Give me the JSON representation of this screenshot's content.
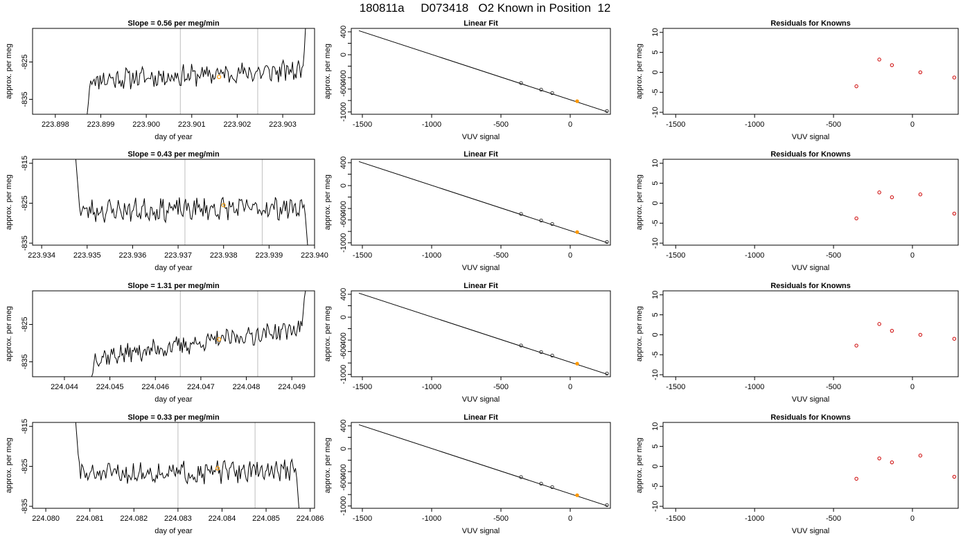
{
  "figure": {
    "title": "180811a     D073418   O2 Known in Position  12"
  },
  "colors": {
    "trace": "#000000",
    "marker_orange": "#ff9900",
    "residual_red": "#cc0000",
    "fit_line": "#000000",
    "vline": "#c8c8c8"
  },
  "chart_data": [
    {
      "type": "line",
      "row": 1,
      "col": 1,
      "title": "Slope =  0.56  per meg/min",
      "xlabel": "day of year",
      "ylabel": "approx. per meg",
      "xlim": [
        223.8975,
        223.9037
      ],
      "ylim": [
        -839,
        -816
      ],
      "xticks": [
        223.898,
        223.899,
        223.9,
        223.901,
        223.902,
        223.903
      ],
      "xtick_labels": [
        "223.898",
        "223.899",
        "223.900",
        "223.901",
        "223.902",
        "223.903"
      ],
      "yticks": [
        -835,
        -825
      ],
      "ytick_labels": [
        "-835",
        "-825"
      ],
      "vlines": [
        223.90075,
        223.90245
      ],
      "highlight": {
        "x": 223.9016,
        "y": -829
      },
      "trace": {
        "x_start": 223.8987,
        "x_end": 223.9035,
        "start_values": [
          -839,
          -836,
          -832,
          -830
        ],
        "end_values": [
          -826,
          -822,
          -816
        ],
        "mid": -828.5,
        "amplitude": 2.4,
        "trend": 2.5,
        "seed": 11
      }
    },
    {
      "type": "scatter",
      "row": 1,
      "col": 2,
      "title": "Linear Fit",
      "xlabel": "VUV signal",
      "ylabel": "approx. per meg",
      "xlim": [
        -1580,
        290
      ],
      "ylim": [
        -1040,
        460
      ],
      "xticks": [
        -1500,
        -1000,
        -500,
        0
      ],
      "xtick_labels": [
        "-1500",
        "-1000",
        "-500",
        "0"
      ],
      "yticks": [
        -1000,
        -800,
        -600,
        -400,
        -200,
        0,
        200,
        400
      ],
      "ytick_labels": [
        "-1000",
        "",
        "-600",
        "-400",
        "",
        "0",
        "",
        "400"
      ],
      "fit_line": {
        "x": [
          -1525,
          270
        ],
        "y": [
          420,
          -1000
        ]
      },
      "points": {
        "x": [
          -355,
          -210,
          -130,
          50,
          265
        ],
        "y": [
          -495,
          -610,
          -670,
          -812,
          -985
        ]
      },
      "orange_point_index": 3
    },
    {
      "type": "scatter",
      "row": 1,
      "col": 3,
      "title": "Residuals for Knowns",
      "xlabel": "VUV signal",
      "ylabel": "approx. per meg",
      "xlim": [
        -1580,
        290
      ],
      "ylim": [
        -10.5,
        11
      ],
      "xticks": [
        -1500,
        -1000,
        -500,
        0
      ],
      "xtick_labels": [
        "-1500",
        "-1000",
        "-500",
        "0"
      ],
      "yticks": [
        -10,
        -5,
        0,
        5,
        10
      ],
      "ytick_labels": [
        "-10",
        "-5",
        "0",
        "5",
        "10"
      ],
      "points": {
        "x": [
          -355,
          -210,
          -130,
          50,
          265
        ],
        "y": [
          -3.5,
          3.2,
          1.8,
          0,
          -1.3
        ]
      }
    },
    {
      "type": "line",
      "row": 2,
      "col": 1,
      "title": "Slope =  0.43  per meg/min",
      "xlabel": "day of year",
      "ylabel": "approx. per meg",
      "xlim": [
        223.9338,
        223.94
      ],
      "ylim": [
        -835.5,
        -814
      ],
      "xticks": [
        223.934,
        223.935,
        223.936,
        223.937,
        223.938,
        223.939,
        223.94
      ],
      "xtick_labels": [
        "223.934",
        "223.935",
        "223.936",
        "223.937",
        "223.938",
        "223.939",
        "223.940"
      ],
      "yticks": [
        -835,
        -825,
        -815
      ],
      "ytick_labels": [
        "-835",
        "-825",
        "-815"
      ],
      "vlines": [
        223.93715,
        223.93885
      ],
      "highlight": {
        "x": 223.938,
        "y": -825.5
      },
      "trace": {
        "x_start": 223.93475,
        "x_end": 223.93985,
        "start_values": [
          -814,
          -818,
          -822,
          -826
        ],
        "end_values": [
          -828,
          -832,
          -836
        ],
        "mid": -826.5,
        "amplitude": 2.4,
        "trend": 0.8,
        "seed": 23
      }
    },
    {
      "type": "scatter",
      "row": 2,
      "col": 2,
      "title": "Linear Fit",
      "xlabel": "VUV signal",
      "ylabel": "approx. per meg",
      "xlim": [
        -1580,
        290
      ],
      "ylim": [
        -1040,
        460
      ],
      "xticks": [
        -1500,
        -1000,
        -500,
        0
      ],
      "xtick_labels": [
        "-1500",
        "-1000",
        "-500",
        "0"
      ],
      "yticks": [
        -1000,
        -800,
        -600,
        -400,
        -200,
        0,
        200,
        400
      ],
      "ytick_labels": [
        "-1000",
        "",
        "-600",
        "-400",
        "",
        "0",
        "",
        "400"
      ],
      "fit_line": {
        "x": [
          -1525,
          270
        ],
        "y": [
          420,
          -1000
        ]
      },
      "points": {
        "x": [
          -355,
          -210,
          -130,
          50,
          265
        ],
        "y": [
          -495,
          -610,
          -670,
          -812,
          -985
        ]
      },
      "orange_point_index": 3
    },
    {
      "type": "scatter",
      "row": 2,
      "col": 3,
      "title": "Residuals for Knowns",
      "xlabel": "VUV signal",
      "ylabel": "approx. per meg",
      "xlim": [
        -1580,
        290
      ],
      "ylim": [
        -10.5,
        11
      ],
      "xticks": [
        -1500,
        -1000,
        -500,
        0
      ],
      "xtick_labels": [
        "-1500",
        "-1000",
        "-500",
        "0"
      ],
      "yticks": [
        -10,
        -5,
        0,
        5,
        10
      ],
      "ytick_labels": [
        "-10",
        "-5",
        "0",
        "5",
        "10"
      ],
      "points": {
        "x": [
          -355,
          -210,
          -130,
          50,
          265
        ],
        "y": [
          -3.8,
          2.7,
          1.5,
          2.2,
          -2.6
        ]
      }
    },
    {
      "type": "line",
      "row": 3,
      "col": 1,
      "title": "Slope =  1.31  per meg/min",
      "xlabel": "day of year",
      "ylabel": "approx. per meg",
      "xlim": [
        224.0433,
        224.0495
      ],
      "ylim": [
        -839,
        -816
      ],
      "xticks": [
        224.044,
        224.045,
        224.046,
        224.047,
        224.048,
        224.049
      ],
      "xtick_labels": [
        "224.044",
        "224.045",
        "224.046",
        "224.047",
        "224.048",
        "224.049"
      ],
      "yticks": [
        -835,
        -825
      ],
      "ytick_labels": [
        "-835",
        "-825"
      ],
      "vlines": [
        224.04655,
        224.04825
      ],
      "highlight": {
        "x": 224.0474,
        "y": -829
      },
      "trace": {
        "x_start": 224.0446,
        "x_end": 224.0493,
        "start_values": [
          -839,
          -838
        ],
        "end_values": [
          -822,
          -818,
          -816
        ],
        "mid": -830,
        "amplitude": 2.2,
        "trend": 8,
        "seed": 37
      }
    },
    {
      "type": "scatter",
      "row": 3,
      "col": 2,
      "title": "Linear Fit",
      "xlabel": "VUV signal",
      "ylabel": "approx. per meg",
      "xlim": [
        -1580,
        290
      ],
      "ylim": [
        -1040,
        460
      ],
      "xticks": [
        -1500,
        -1000,
        -500,
        0
      ],
      "xtick_labels": [
        "-1500",
        "-1000",
        "-500",
        "0"
      ],
      "yticks": [
        -1000,
        -800,
        -600,
        -400,
        -200,
        0,
        200,
        400
      ],
      "ytick_labels": [
        "-1000",
        "",
        "-600",
        "-400",
        "",
        "0",
        "",
        "400"
      ],
      "fit_line": {
        "x": [
          -1525,
          270
        ],
        "y": [
          420,
          -1000
        ]
      },
      "points": {
        "x": [
          -355,
          -210,
          -130,
          50,
          265
        ],
        "y": [
          -495,
          -610,
          -670,
          -812,
          -985
        ]
      },
      "orange_point_index": 3
    },
    {
      "type": "scatter",
      "row": 3,
      "col": 3,
      "title": "Residuals for Knowns",
      "xlabel": "VUV signal",
      "ylabel": "approx. per meg",
      "xlim": [
        -1580,
        290
      ],
      "ylim": [
        -10.5,
        11
      ],
      "xticks": [
        -1500,
        -1000,
        -500,
        0
      ],
      "xtick_labels": [
        "-1500",
        "-1000",
        "-500",
        "0"
      ],
      "yticks": [
        -10,
        -5,
        0,
        5,
        10
      ],
      "ytick_labels": [
        "-10",
        "-5",
        "0",
        "5",
        "10"
      ],
      "points": {
        "x": [
          -355,
          -210,
          -130,
          50,
          265
        ],
        "y": [
          -2.7,
          2.7,
          1.0,
          0,
          -1.0
        ]
      }
    },
    {
      "type": "line",
      "row": 4,
      "col": 1,
      "title": "Slope =  0.33  per meg/min",
      "xlabel": "day of year",
      "ylabel": "approx. per meg",
      "xlim": [
        224.0797,
        224.0861
      ],
      "ylim": [
        -835.5,
        -814
      ],
      "xticks": [
        224.08,
        224.081,
        224.082,
        224.083,
        224.084,
        224.085,
        224.086
      ],
      "xtick_labels": [
        "224.080",
        "224.081",
        "224.082",
        "224.083",
        "224.084",
        "224.085",
        "224.086"
      ],
      "yticks": [
        -835,
        -825,
        -815
      ],
      "ytick_labels": [
        "-835",
        "-825",
        "-815"
      ],
      "vlines": [
        224.083,
        224.08475
      ],
      "highlight": {
        "x": 224.0839,
        "y": -825.5
      },
      "trace": {
        "x_start": 224.08068,
        "x_end": 224.08575,
        "start_values": [
          -814,
          -818,
          -822,
          -824
        ],
        "end_values": [
          -828,
          -832,
          -836
        ],
        "mid": -826.5,
        "amplitude": 2.3,
        "trend": 1.0,
        "seed": 51
      }
    },
    {
      "type": "scatter",
      "row": 4,
      "col": 2,
      "title": "Linear Fit",
      "xlabel": "VUV signal",
      "ylabel": "approx. per meg",
      "xlim": [
        -1580,
        290
      ],
      "ylim": [
        -1040,
        460
      ],
      "xticks": [
        -1500,
        -1000,
        -500,
        0
      ],
      "xtick_labels": [
        "-1500",
        "-1000",
        "-500",
        "0"
      ],
      "yticks": [
        -1000,
        -800,
        -600,
        -400,
        -200,
        0,
        200,
        400
      ],
      "ytick_labels": [
        "-1000",
        "",
        "-600",
        "-400",
        "",
        "0",
        "",
        "400"
      ],
      "fit_line": {
        "x": [
          -1525,
          270
        ],
        "y": [
          420,
          -1000
        ]
      },
      "points": {
        "x": [
          -355,
          -210,
          -130,
          50,
          265
        ],
        "y": [
          -495,
          -610,
          -670,
          -812,
          -985
        ]
      },
      "orange_point_index": 3
    },
    {
      "type": "scatter",
      "row": 4,
      "col": 3,
      "title": "Residuals for Knowns",
      "xlabel": "VUV signal",
      "ylabel": "approx. per meg",
      "xlim": [
        -1580,
        290
      ],
      "ylim": [
        -10.5,
        11
      ],
      "xticks": [
        -1500,
        -1000,
        -500,
        0
      ],
      "xtick_labels": [
        "-1500",
        "-1000",
        "-500",
        "0"
      ],
      "yticks": [
        -10,
        -5,
        0,
        5,
        10
      ],
      "ytick_labels": [
        "-10",
        "-5",
        "0",
        "5",
        "10"
      ],
      "points": {
        "x": [
          -355,
          -210,
          -130,
          50,
          265
        ],
        "y": [
          -3.1,
          2.0,
          1.0,
          2.7,
          -2.6
        ]
      }
    }
  ]
}
